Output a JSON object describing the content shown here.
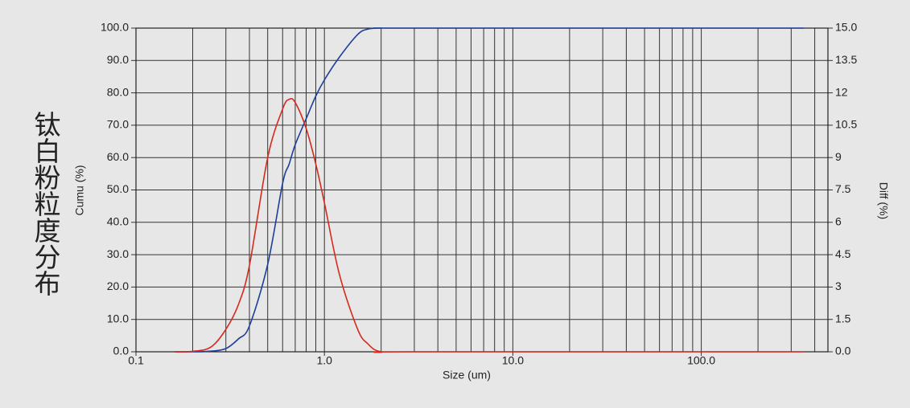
{
  "chart_data": {
    "type": "line",
    "title": "钛白粉粒度分布",
    "x_label": "Size (um)",
    "y_label": "Cumu (%)",
    "y2_label": "Diff (%)",
    "x_scale": "log",
    "xlim": [
      0.1,
      470
    ],
    "xticks": [
      {
        "value": 0.1,
        "label": "0.1"
      },
      {
        "value": 1,
        "label": "1.0"
      },
      {
        "value": 10,
        "label": "10.0"
      },
      {
        "value": 100,
        "label": "100.0"
      }
    ],
    "xgrid": [
      0.2,
      0.3,
      0.4,
      0.5,
      0.6,
      0.7,
      0.8,
      0.9,
      1,
      2,
      3,
      4,
      5,
      6,
      7,
      8,
      9,
      10,
      20,
      30,
      40,
      50,
      60,
      70,
      80,
      90,
      100,
      200,
      300,
      400
    ],
    "ylim": [
      0,
      100
    ],
    "yticks": [
      {
        "value": 0,
        "label": "0.0"
      },
      {
        "value": 10,
        "label": "10.0"
      },
      {
        "value": 20,
        "label": "20.0"
      },
      {
        "value": 30,
        "label": "30.0"
      },
      {
        "value": 40,
        "label": "40.0"
      },
      {
        "value": 50,
        "label": "50.0"
      },
      {
        "value": 60,
        "label": "60.0"
      },
      {
        "value": 70,
        "label": "70.0"
      },
      {
        "value": 80,
        "label": "80.0"
      },
      {
        "value": 90,
        "label": "90.0"
      },
      {
        "value": 100,
        "label": "100.0"
      }
    ],
    "y2lim": [
      0,
      15
    ],
    "y2ticks": [
      {
        "value": 0,
        "label": "0.0"
      },
      1.5,
      3,
      4.5,
      6,
      7.5,
      9,
      10.5,
      12,
      13.5,
      {
        "value": 15,
        "label": "15.0"
      }
    ],
    "grid": true,
    "x": [
      0.16,
      0.2,
      0.25,
      0.3,
      0.35,
      0.4,
      0.5,
      0.6,
      0.65,
      0.7,
      0.8,
      0.9,
      1.0,
      1.2,
      1.5,
      1.7,
      2.0,
      3.0,
      350
    ],
    "series": [
      {
        "color": "#1c3f9a",
        "values": [
          0,
          0,
          0.2,
          1,
          4,
          8,
          27,
          52,
          58,
          64,
          72,
          79,
          84,
          91,
          98,
          99.7,
          100,
          100,
          100
        ]
      },
      {
        "color": "#d42a1e",
        "axis": "y2",
        "values": [
          0,
          0.02,
          0.22,
          1.04,
          2.2,
          4.0,
          9.0,
          11.25,
          11.7,
          11.55,
          10.35,
          8.7,
          6.9,
          3.6,
          1.05,
          0.37,
          0,
          0,
          0
        ]
      }
    ]
  }
}
